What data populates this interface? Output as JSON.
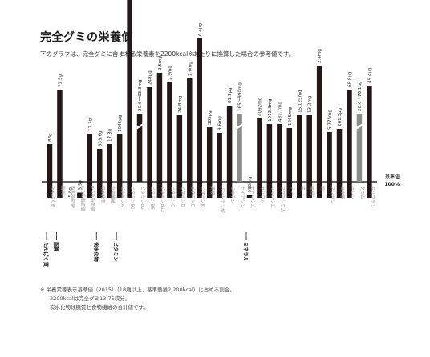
{
  "title": "完全グミの栄養価",
  "subtitle": "下のグラフは、完全グミに含まれる栄養素を2200kcal※あたりに換算した場合の参考値です。",
  "baseline_label": "基準値",
  "baseline_pct": "100%",
  "footnotes": [
    "※ 栄養素等表示基準値（2015）（18歳以上、基準熱量2,200kcal）に占める割合。",
    "2200kcalは完全グミ13.75袋分。",
    "炭水化物は糖質と食物繊維の合計値です。"
  ],
  "colors": {
    "bar": "#231815",
    "bar_grey": "#8c8c8c",
    "baseline": "#000000",
    "break": "#ffffff"
  },
  "chart_data": {
    "type": "bar",
    "ylabel": "",
    "baseline_value": 100,
    "categories": [
      {
        "name": "たんぱく質",
        "value_label": "88g",
        "pct": 47,
        "group": "たんぱく質"
      },
      {
        "name": "脂質",
        "value_label": "71.5g",
        "pct": 115,
        "group": "脂質"
      },
      {
        "name": "飽和脂肪酸",
        "value_label": "5.8g",
        "pct": -30,
        "group": "脂質"
      },
      {
        "name": "n-3系脂肪酸",
        "value_label": "3.5g",
        "pct": -18,
        "group": "脂質"
      },
      {
        "name": "n-6系脂肪酸",
        "value_label": "12.7g",
        "pct": 60,
        "group": "脂質"
      },
      {
        "name": "炭水化物",
        "value_label": "339.6g",
        "pct": 41,
        "group": "炭水化物"
      },
      {
        "name": "食物繊維",
        "value_label": "17.8g",
        "pct": 47,
        "group": "炭水化物"
      },
      {
        "name": "ビタミンA",
        "value_label": "1045μg",
        "pct": 59,
        "group": "ビタミン"
      },
      {
        "name": "ビタミンB1",
        "value_label": "15.1μg",
        "pct": 270,
        "group": "ビタミン"
      },
      {
        "name": "ビタミンB2",
        "value_label": "20.6〜63.3mg",
        "pct": null,
        "group": "ビタミン",
        "broken": true
      },
      {
        "name": "ビタミンB6",
        "value_label": "248μg",
        "pct": 118,
        "group": "ビタミン"
      },
      {
        "name": "ビタミンB12",
        "value_label": "2.5mg",
        "pct": 136,
        "group": "ビタミン"
      },
      {
        "name": "ビタミンC",
        "value_label": "2.9mg",
        "pct": 124,
        "group": "ビタミン"
      },
      {
        "name": "ビタミンD",
        "value_label": "24.8mg",
        "pct": 83,
        "group": "ビタミン"
      },
      {
        "name": "ビタミンE",
        "value_label": "2.6mg",
        "pct": 129,
        "group": "ビタミン"
      },
      {
        "name": "ビタミンK",
        "value_label": "6.4μg",
        "pct": 179,
        "group": "ビタミン"
      },
      {
        "name": "葉酸",
        "value_label": "385μg",
        "pct": 68,
        "group": "ビタミン"
      },
      {
        "name": "パントテン酸",
        "value_label": "9.6mg",
        "pct": 61,
        "group": "ビタミン"
      },
      {
        "name": "ビオチン",
        "value_label": "81.1μg",
        "pct": 95,
        "group": "ビタミン"
      },
      {
        "name": "ナイアシン",
        "value_label": "165〜990mg",
        "pct": null,
        "group": "ビタミン",
        "broken": true,
        "grey": true
      },
      {
        "name": "ナトリウム",
        "value_label": "990mg",
        "pct": -22,
        "group": "ミネラル"
      },
      {
        "name": "カリウム",
        "value_label": "4092mg",
        "pct": 79,
        "group": "ミネラル"
      },
      {
        "name": "カルシウム",
        "value_label": "1013.3mg",
        "pct": 72,
        "group": "ミネラル"
      },
      {
        "name": "マグネシウム",
        "value_label": "481.7mg",
        "pct": 72,
        "group": "ミネラル"
      },
      {
        "name": "リン",
        "value_label": "1265mg",
        "pct": 67,
        "group": "ミネラル"
      },
      {
        "name": "鉄",
        "value_label": "15.125mg",
        "pct": 83,
        "group": "ミネラル"
      },
      {
        "name": "亜鉛",
        "value_label": "13.2mg",
        "pct": 83,
        "group": "ミネラル"
      },
      {
        "name": "銅",
        "value_label": "2.4mg",
        "pct": 145,
        "group": "ミネラル"
      },
      {
        "name": "マンガン",
        "value_label": "5.775mg",
        "pct": 62,
        "group": "ミネラル"
      },
      {
        "name": "ヨウ素",
        "value_label": "261.3μg",
        "pct": 66,
        "group": "ミネラル"
      },
      {
        "name": "セレン",
        "value_label": "68.8μg",
        "pct": 115,
        "group": "ミネラル"
      },
      {
        "name": "クロム",
        "value_label": "20.6〜70.1μg",
        "pct": null,
        "group": "ミネラル",
        "broken": true,
        "grey": true
      },
      {
        "name": "モリブデン",
        "value_label": "45.4μg",
        "pct": 120,
        "group": "ミネラル"
      }
    ],
    "groups": [
      {
        "name": "たんぱく質",
        "from": 0,
        "to": 0
      },
      {
        "name": "脂質",
        "from": 1,
        "to": 4
      },
      {
        "name": "炭水化物",
        "from": 5,
        "to": 6
      },
      {
        "name": "ビタミン",
        "from": 7,
        "to": 19
      },
      {
        "name": "ミネラル",
        "from": 20,
        "to": 32
      }
    ]
  }
}
